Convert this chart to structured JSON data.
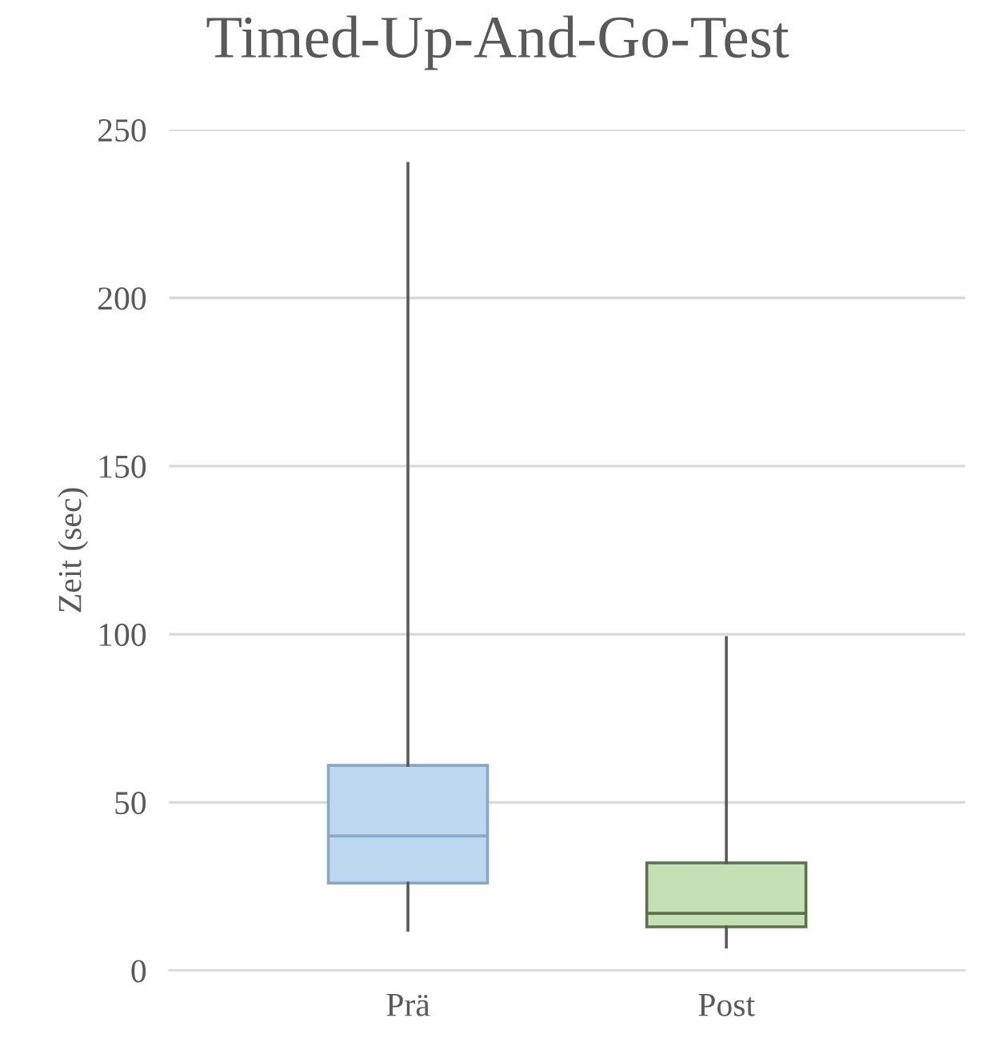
{
  "chart_data": {
    "type": "box",
    "title": "Timed-Up-And-Go-Test",
    "ylabel": "Zeit (sec)",
    "categories": [
      "Prä",
      "Post"
    ],
    "boxes": [
      {
        "low": 12,
        "q1": 26,
        "median": 40,
        "q3": 61,
        "high": 240
      },
      {
        "low": 7,
        "q1": 13,
        "median": 17,
        "q3": 32,
        "high": 99
      }
    ],
    "colors": [
      "#bdd7ee",
      "#c5e0b4"
    ],
    "ylim": [
      0,
      250
    ],
    "yticks": [
      0,
      50,
      100,
      150,
      200,
      250
    ],
    "grid": "y"
  }
}
